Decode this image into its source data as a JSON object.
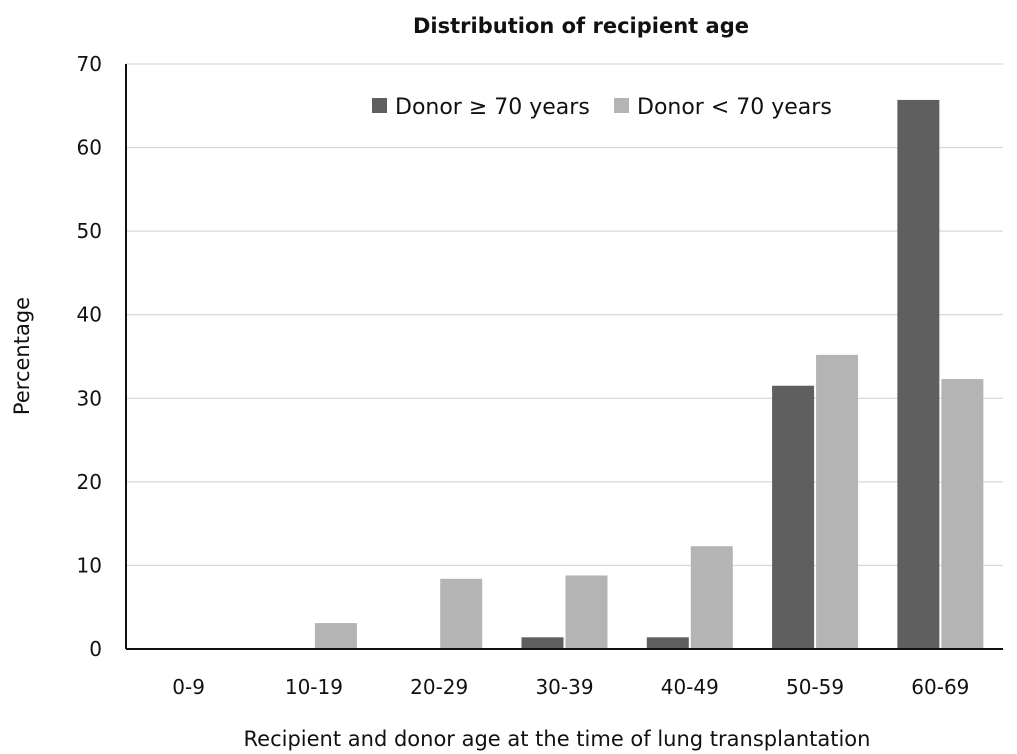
{
  "chart_data": {
    "type": "bar",
    "title": "Distribution of recipient age",
    "xlabel": "Recipient and donor age at the time of lung transplantation",
    "ylabel": "Percentage",
    "ylim": [
      0,
      70
    ],
    "yticks": [
      0,
      10,
      20,
      30,
      40,
      50,
      60,
      70
    ],
    "grid": true,
    "legend_position": "top-right",
    "categories": [
      "0-9",
      "10-19",
      "20-29",
      "30-39",
      "40-49",
      "50-59",
      "60-69"
    ],
    "series": [
      {
        "name": "Donor ≥ 70 years",
        "color": "#5f5f5f",
        "values": [
          0,
          0,
          0,
          1.4,
          1.4,
          31.5,
          65.7
        ]
      },
      {
        "name": "Donor < 70 years",
        "color": "#b4b4b4",
        "values": [
          0,
          3.1,
          8.4,
          8.8,
          12.3,
          35.2,
          32.3
        ]
      }
    ]
  }
}
